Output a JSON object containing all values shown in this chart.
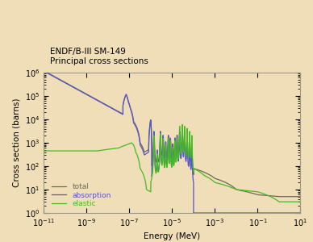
{
  "title_line1": "ENDF/B-III SM-149",
  "title_line2": "Principal cross sections",
  "xlabel": "Energy (MeV)",
  "ylabel": "Cross section (barns)",
  "xlim_log": [
    -11,
    1
  ],
  "ylim_log": [
    0,
    6
  ],
  "bg_color": "#f0deb8",
  "plot_bg_color": "#f0deb8",
  "line_colors": {
    "total": "#6b6b55",
    "absorption": "#5555cc",
    "elastic": "#44bb22"
  },
  "legend_labels": [
    "total",
    "absorption",
    "elastic"
  ]
}
